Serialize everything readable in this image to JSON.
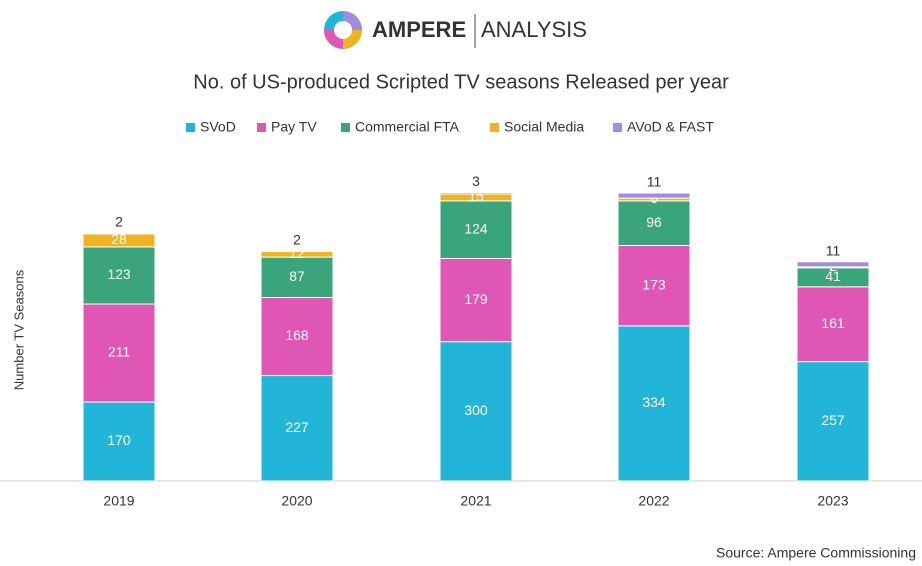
{
  "chart_data": {
    "type": "stacked_bar",
    "logo": {
      "name": "AMPERE",
      "suffix": "ANALYSIS"
    },
    "title": "No. of US-produced Scripted TV seasons Released per year",
    "y_label": "Number TV Seasons",
    "source": "Source: Ampere Commissioning",
    "categories": [
      "2019",
      "2020",
      "2021",
      "2022",
      "2023"
    ],
    "series": [
      {
        "name": "SVoD",
        "color": "#22b5d8",
        "values": [
          170,
          227,
          300,
          334,
          257
        ]
      },
      {
        "name": "Pay TV",
        "color": "#e056b4",
        "values": [
          211,
          168,
          179,
          173,
          161
        ]
      },
      {
        "name": "Commercial FTA",
        "color": "#3aa57a",
        "values": [
          123,
          87,
          124,
          96,
          41
        ]
      },
      {
        "name": "Social Media",
        "color": "#efb323",
        "values": [
          28,
          12,
          15,
          6,
          2
        ]
      },
      {
        "name": "AVoD & FAST",
        "color": "#a48be0",
        "values": [
          2,
          2,
          3,
          11,
          11
        ]
      }
    ],
    "ylim": [
      0,
      620
    ],
    "legend": "top"
  }
}
